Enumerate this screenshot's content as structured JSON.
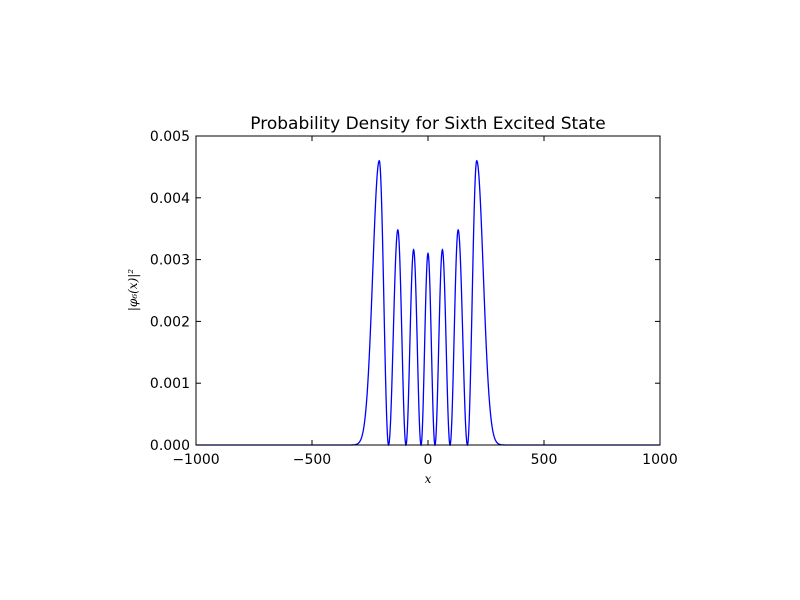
{
  "chart_data": {
    "type": "line",
    "title": "Probability Density for Sixth Excited State",
    "xlabel": "x",
    "ylabel": "|φ₆(x)|²",
    "xlim": [
      -1000,
      1000
    ],
    "ylim": [
      0,
      0.005
    ],
    "xticks": [
      -1000,
      -500,
      0,
      500,
      1000
    ],
    "xtick_labels": [
      "−1000",
      "−500",
      "0",
      "500",
      "1000"
    ],
    "yticks": [
      0,
      0.001,
      0.002,
      0.003,
      0.004,
      0.005
    ],
    "ytick_labels": [
      "0.000",
      "0.001",
      "0.002",
      "0.003",
      "0.004",
      "0.005"
    ],
    "grid": false,
    "line_color": "#0000ff",
    "series": [
      {
        "peaks": [
          {
            "x": -210,
            "y": 0.0046
          },
          {
            "x": -130,
            "y": 0.00348
          },
          {
            "x": -62,
            "y": 0.00316
          },
          {
            "x": 0,
            "y": 0.0031
          },
          {
            "x": 62,
            "y": 0.00316
          },
          {
            "x": 130,
            "y": 0.00348
          },
          {
            "x": 210,
            "y": 0.0046
          }
        ],
        "zeros": [
          -170,
          -95,
          -30,
          30,
          95,
          170
        ]
      }
    ]
  }
}
